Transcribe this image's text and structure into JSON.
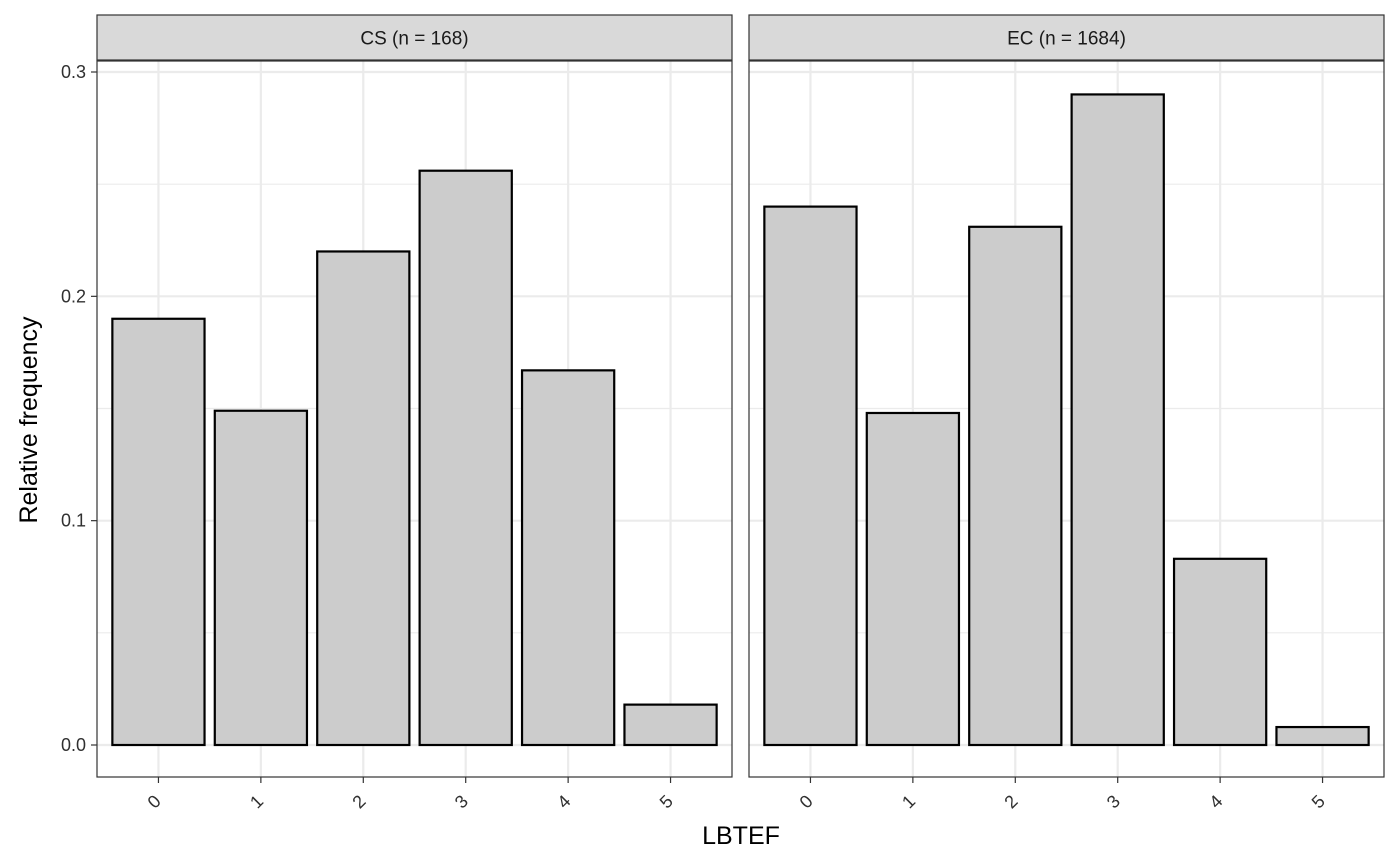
{
  "chart_data": {
    "type": "bar",
    "xlabel": "LBTEF",
    "ylabel": "Relative frequency",
    "categories": [
      "0",
      "1",
      "2",
      "3",
      "4",
      "5"
    ],
    "ylim": [
      -0.014,
      0.3
    ],
    "yticks": [
      0.0,
      0.1,
      0.2,
      0.3
    ],
    "ytick_labels": [
      "0.0",
      "0.1",
      "0.2",
      "0.3"
    ],
    "grid": true,
    "colors": {
      "bar_fill": "#cccccc",
      "bar_stroke": "#000000",
      "strip_fill": "#d9d9d9",
      "grid": "#ebebeb"
    },
    "panels": [
      {
        "label": "CS (n = 168)",
        "values": [
          0.19,
          0.149,
          0.22,
          0.256,
          0.167,
          0.018
        ]
      },
      {
        "label": "EC (n = 1684)",
        "values": [
          0.24,
          0.148,
          0.231,
          0.29,
          0.083,
          0.008
        ]
      }
    ]
  }
}
